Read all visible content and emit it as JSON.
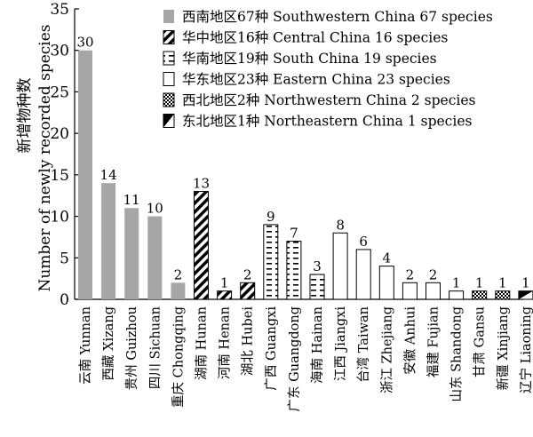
{
  "chart_data": {
    "type": "bar",
    "ylabel_line1": "新增物种数",
    "ylabel_line2": "Number of newly recorded species",
    "ylim": [
      0,
      35
    ],
    "yticks": [
      0,
      5,
      10,
      15,
      20,
      25,
      30,
      35
    ],
    "grid": false,
    "legend_position": "top-right",
    "series": [
      {
        "name": "西南地区67种 Southwestern China 67 species",
        "pattern": "solid-gray"
      },
      {
        "name": "华中地区16种 Central China 16 species",
        "pattern": "diagonal-dense"
      },
      {
        "name": "华南地区19种 South China 19 species",
        "pattern": "horizontal-dash"
      },
      {
        "name": "华东地区23种 Eastern China 23 species",
        "pattern": "white"
      },
      {
        "name": "西北地区2种 Northwestern China 2 species",
        "pattern": "checker"
      },
      {
        "name": "东北地区1种 Northeastern China 1 species",
        "pattern": "halfblack"
      }
    ],
    "categories": [
      "云南 Yunnan",
      "西藏 Xizang",
      "贵州 Guizhou",
      "四川 Sichuan",
      "重庆 Chongqing",
      "湖南 Hunan",
      "河南 Henan",
      "湖北 Hubei",
      "广西 Guangxi",
      "广东 Guangdong",
      "海南 Hainan",
      "江西 Jiangxi",
      "台湾 Taiwan",
      "浙江 Zhejiang",
      "安徽 Anhui",
      "福建 Fujian",
      "山东 Shandong",
      "甘肃 Gansu",
      "新疆 Xinjiang",
      "辽宁 Liaoning"
    ],
    "values": [
      30,
      14,
      11,
      10,
      2,
      13,
      1,
      2,
      9,
      7,
      3,
      8,
      6,
      4,
      2,
      2,
      1,
      1,
      1,
      1
    ],
    "region_index": [
      0,
      0,
      0,
      0,
      0,
      1,
      1,
      1,
      2,
      2,
      2,
      3,
      3,
      3,
      3,
      3,
      3,
      4,
      4,
      5
    ]
  }
}
